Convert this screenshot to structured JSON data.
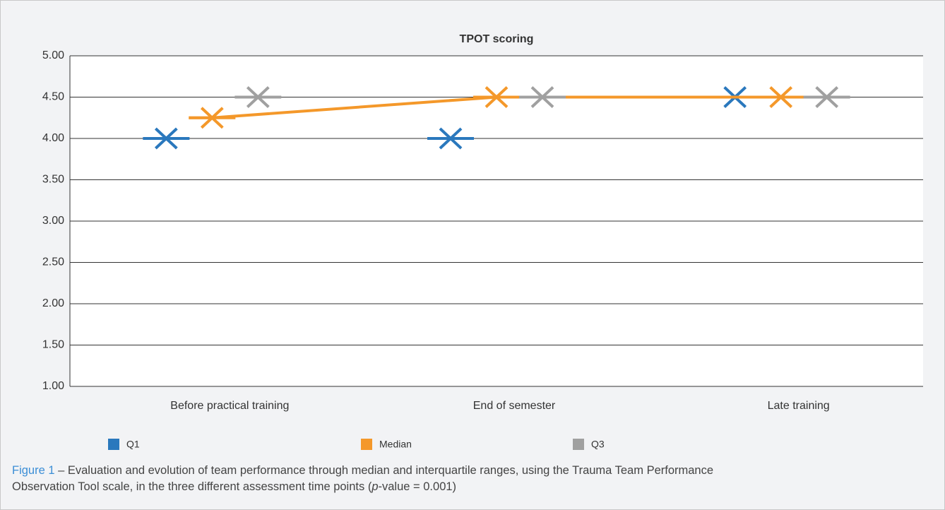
{
  "chart_data": {
    "type": "marker-line",
    "title": "TPOT scoring",
    "categories": [
      "Before practical training",
      "End of semester",
      "Late training"
    ],
    "series": [
      {
        "name": "Q1",
        "color": "#2a78bd",
        "line": false,
        "values": [
          4,
          4,
          4.5
        ]
      },
      {
        "name": "Median",
        "color": "#f4982a",
        "line": true,
        "values": [
          4.25,
          4.5,
          4.5
        ]
      },
      {
        "name": "Q3",
        "color": "#a0a0a0",
        "line": false,
        "values": [
          4.5,
          4.5,
          4.5
        ]
      }
    ],
    "ylim": [
      1,
      5
    ],
    "yticks": [
      {
        "value": 1,
        "label": "1.00"
      },
      {
        "value": 1.5,
        "label": "1.50"
      },
      {
        "value": 2,
        "label": "2.00"
      },
      {
        "value": 2.5,
        "label": "2.50"
      },
      {
        "value": 3,
        "label": "3.00"
      },
      {
        "value": 3.5,
        "label": "3.50"
      },
      {
        "value": 4,
        "label": "4.00"
      },
      {
        "value": 4.5,
        "label": "4.50"
      },
      {
        "value": 5,
        "label": "5.00"
      }
    ],
    "grid": true,
    "legend": "bottom"
  },
  "caption": {
    "label": "Figure 1",
    "line1": " – Evaluation and evolution of team performance through median and interquartile ranges, using the Trauma Team Performance",
    "line2": "Observation Tool scale, in the three different assessment time points (",
    "italic": "p",
    "line2_end": "-value = 0.001)"
  }
}
